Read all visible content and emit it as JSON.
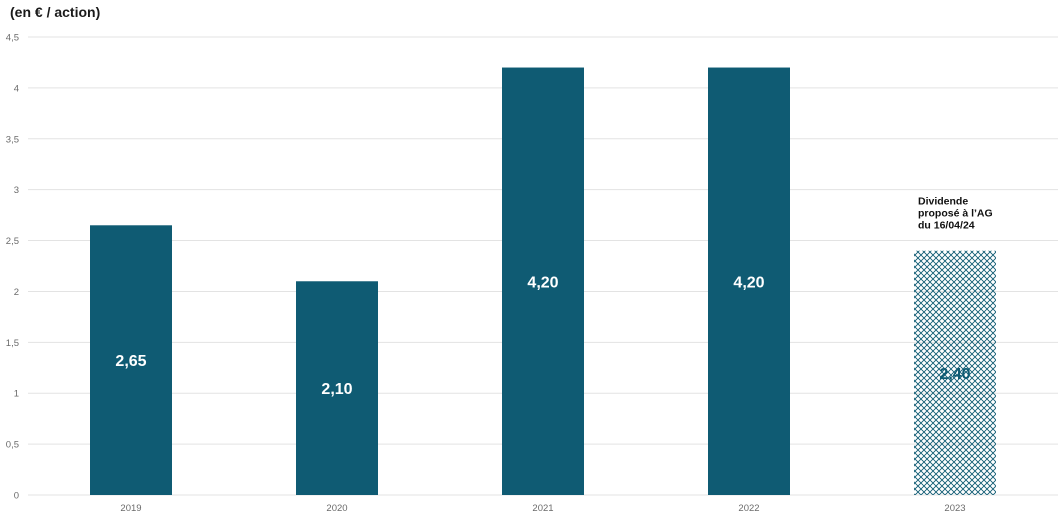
{
  "unit_label": "(en € / action)",
  "colors": {
    "bar": "#0f5b73",
    "hatch": "#0f5b73",
    "grid": "#e3e3e3",
    "label_light": "#ffffff"
  },
  "chart_data": {
    "type": "bar",
    "categories": [
      "2019",
      "2020",
      "2021",
      "2022",
      "2023"
    ],
    "values": [
      2.65,
      2.1,
      4.2,
      4.2,
      2.4
    ],
    "value_labels": [
      "2,65",
      "2,10",
      "4,20",
      "4,20",
      "2,40"
    ],
    "ylim": [
      0,
      4.5
    ],
    "yticks": [
      0,
      0.5,
      1,
      1.5,
      2,
      2.5,
      3,
      3.5,
      4,
      4.5
    ],
    "ytick_labels": [
      "0",
      "0,5",
      "1",
      "1,5",
      "2",
      "2,5",
      "3",
      "3,5",
      "4",
      "4,5"
    ],
    "hatched_category": "2023",
    "annotation": {
      "category": "2023",
      "lines": [
        "Dividende",
        "proposé à l’AG",
        "du 16/04/24"
      ]
    },
    "grid": true
  }
}
